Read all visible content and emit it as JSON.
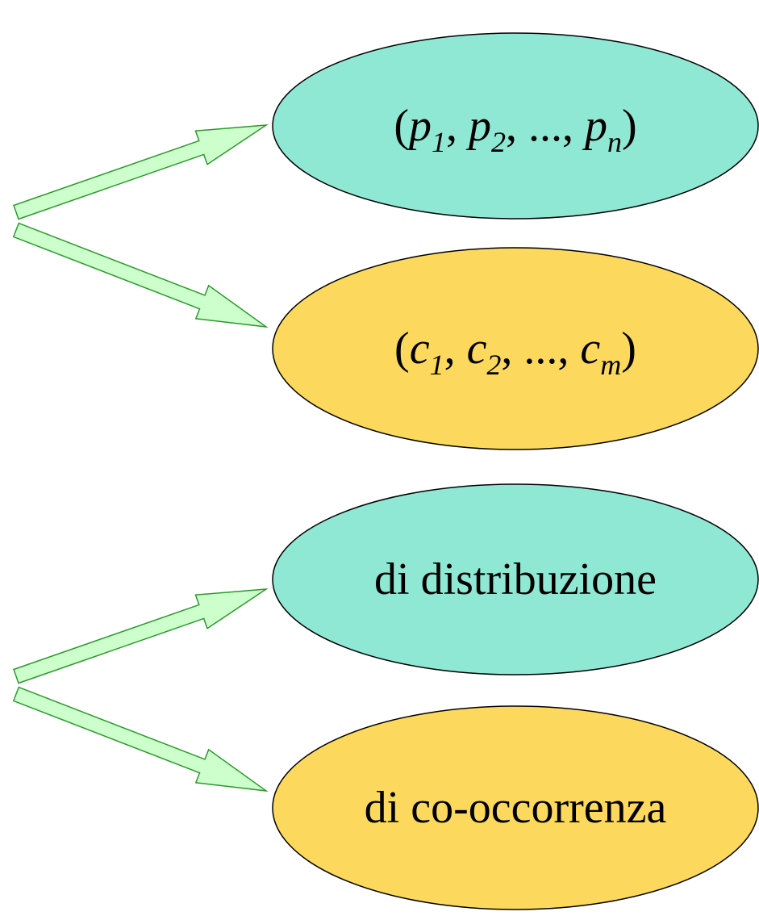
{
  "nodes": [
    {
      "color": "#8fe8d4",
      "parts": [
        {
          "text": "(",
          "style": "normal"
        },
        {
          "text": "p",
          "style": "italic"
        },
        {
          "text": "1",
          "style": "sub"
        },
        {
          "text": ", ",
          "style": "normal"
        },
        {
          "text": "p",
          "style": "italic"
        },
        {
          "text": "2",
          "style": "sub"
        },
        {
          "text": ",  ..., ",
          "style": "normal"
        },
        {
          "text": "p",
          "style": "italic"
        },
        {
          "text": "n",
          "style": "sub"
        },
        {
          "text": ")",
          "style": "normal"
        }
      ]
    },
    {
      "color": "#fcd95c",
      "parts": [
        {
          "text": "(",
          "style": "normal"
        },
        {
          "text": "c",
          "style": "italic"
        },
        {
          "text": "1",
          "style": "sub"
        },
        {
          "text": ", ",
          "style": "normal"
        },
        {
          "text": "c",
          "style": "italic"
        },
        {
          "text": "2",
          "style": "sub"
        },
        {
          "text": ",  ..., ",
          "style": "normal"
        },
        {
          "text": "c",
          "style": "italic"
        },
        {
          "text": "m",
          "style": "sub"
        },
        {
          "text": ")",
          "style": "normal"
        }
      ]
    },
    {
      "color": "#8fe8d4",
      "parts": [
        {
          "text": "di distribuzione",
          "style": "normal"
        }
      ]
    },
    {
      "color": "#fcd95c",
      "parts": [
        {
          "text": "di co-occorrenza",
          "style": "normal"
        }
      ]
    }
  ]
}
